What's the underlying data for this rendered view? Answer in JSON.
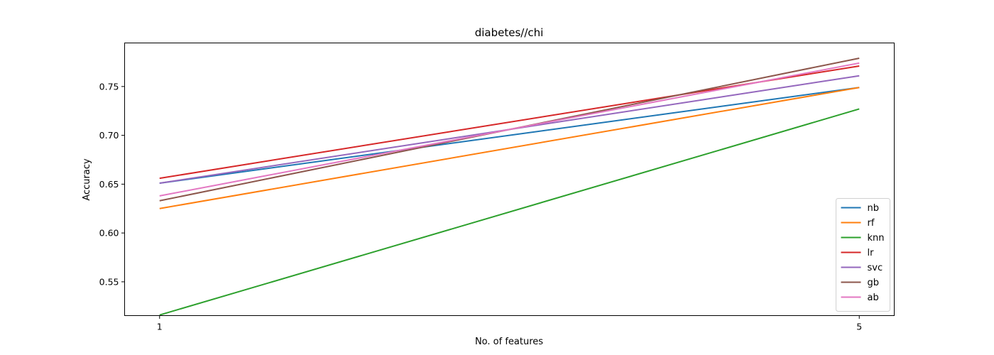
{
  "chart_data": {
    "type": "line",
    "title": "diabetes//chi",
    "xlabel": "No. of features",
    "ylabel": "Accuracy",
    "x": [
      1,
      5
    ],
    "xticks": [
      1,
      5
    ],
    "xtick_labels": [
      "1",
      "5"
    ],
    "xlim": [
      0.8,
      5.2
    ],
    "ylim": [
      0.5154,
      0.7946
    ],
    "yticks": [
      0.55,
      0.6,
      0.65,
      0.7,
      0.75
    ],
    "ytick_labels": [
      "0.55",
      "0.60",
      "0.65",
      "0.70",
      "0.75"
    ],
    "grid": false,
    "legend_position": "lower-right",
    "series": [
      {
        "name": "nb",
        "color": "#1f77b4",
        "values": [
          0.651,
          0.749
        ]
      },
      {
        "name": "rf",
        "color": "#ff7f0e",
        "values": [
          0.625,
          0.749
        ]
      },
      {
        "name": "knn",
        "color": "#2ca02c",
        "values": [
          0.516,
          0.727
        ]
      },
      {
        "name": "lr",
        "color": "#d62728",
        "values": [
          0.656,
          0.771
        ]
      },
      {
        "name": "svc",
        "color": "#9467bd",
        "values": [
          0.651,
          0.761
        ]
      },
      {
        "name": "gb",
        "color": "#8c564b",
        "values": [
          0.633,
          0.779
        ]
      },
      {
        "name": "ab",
        "color": "#e377c2",
        "values": [
          0.638,
          0.774
        ]
      }
    ]
  }
}
